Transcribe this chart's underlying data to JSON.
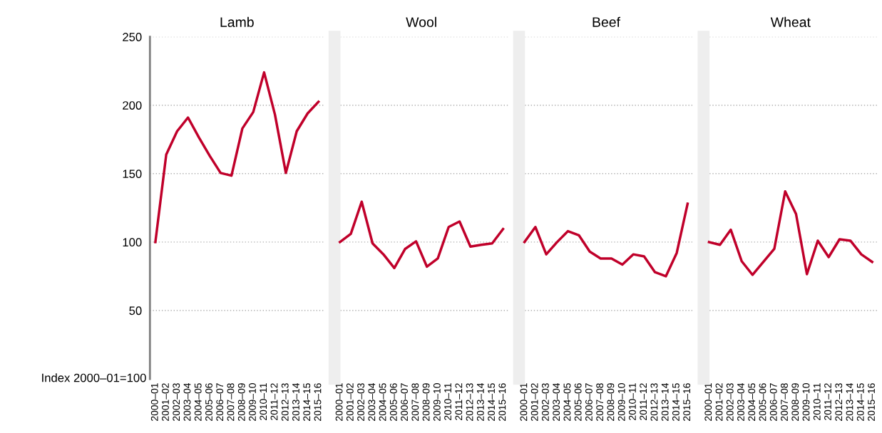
{
  "chart_data": [
    {
      "type": "line",
      "title": "Lamb",
      "ylabel": "Index 2000–01=100",
      "categories": [
        "2000–01",
        "2001–02",
        "2002–03",
        "2003–04",
        "2004–05",
        "2005–06",
        "2006–07",
        "2007–08",
        "2008–09",
        "2009–10",
        "2010–11",
        "2011–12",
        "2012–13",
        "2013–14",
        "2014–15",
        "2015–16"
      ],
      "series": [
        {
          "color": "#c0002a",
          "values": [
            100,
            164,
            181,
            191,
            176.5,
            163,
            150.5,
            148.5,
            183,
            195,
            224,
            193,
            150.5,
            181,
            194,
            202.5
          ]
        }
      ],
      "ylim": [
        0,
        250
      ],
      "yticks": [
        50,
        100,
        150,
        200,
        250
      ],
      "grid": "y",
      "marker": "none",
      "line_style": "solid"
    },
    {
      "type": "line",
      "title": "Wool",
      "categories": [
        "2000–01",
        "2001–02",
        "2002–03",
        "2003–04",
        "2004–05",
        "2005–06",
        "2006–07",
        "2007–08",
        "2008–09",
        "2009–10",
        "2010–11",
        "2011–12",
        "2012–13",
        "2013–14",
        "2014–15",
        "2015–16"
      ],
      "series": [
        {
          "color": "#c0002a",
          "values": [
            100,
            106,
            129.5,
            99,
            91,
            81,
            95,
            100.5,
            82,
            88,
            111,
            115,
            96.7,
            98,
            99,
            109.5
          ]
        }
      ],
      "ylim": [
        0,
        250
      ],
      "yticks": [
        50,
        100,
        150,
        200,
        250
      ],
      "tick_labels": "x",
      "grid": "y",
      "marker": "none",
      "line_style": "solid"
    },
    {
      "type": "line",
      "title": "Beef",
      "categories": [
        "2000–01",
        "2001–02",
        "2002–03",
        "2003–04",
        "2004–05",
        "2005–06",
        "2006–07",
        "2007–08",
        "2008–09",
        "2009–10",
        "2010–11",
        "2011–12",
        "2012–13",
        "2013–14",
        "2014–15",
        "2015–16"
      ],
      "series": [
        {
          "color": "#c0002a",
          "values": [
            100,
            111,
            91,
            100,
            108,
            105,
            93,
            88,
            88,
            83.5,
            91,
            89.5,
            78,
            75,
            92,
            128
          ]
        }
      ],
      "ylim": [
        0,
        250
      ],
      "yticks": [
        50,
        100,
        150,
        200,
        250
      ],
      "tick_labels": "x",
      "grid": "y",
      "marker": "none",
      "line_style": "solid"
    },
    {
      "type": "line",
      "title": "Wheat",
      "categories": [
        "2000–01",
        "2001–02",
        "2002–03",
        "2003–04",
        "2004–05",
        "2005–06",
        "2006–07",
        "2007–08",
        "2008–09",
        "2009–10",
        "2010–11",
        "2011–12",
        "2012–13",
        "2013–14",
        "2014–15",
        "2015–16"
      ],
      "series": [
        {
          "color": "#c0002a",
          "values": [
            100,
            98,
            109,
            86,
            76,
            85.5,
            95,
            137,
            120.5,
            76.5,
            101,
            89,
            102,
            101,
            91,
            85.5
          ]
        }
      ],
      "ylim": [
        0,
        250
      ],
      "yticks": [
        50,
        100,
        150,
        200,
        250
      ],
      "tick_labels": "x",
      "grid": "y",
      "marker": "none",
      "line_style": "solid"
    }
  ]
}
